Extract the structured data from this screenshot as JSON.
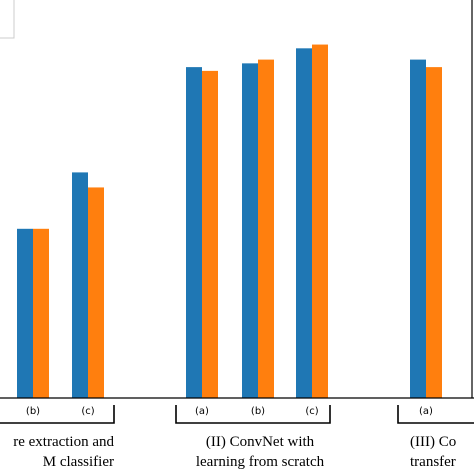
{
  "chart_data": {
    "type": "bar",
    "colors": [
      "#1f77b4",
      "#ff7f0e"
    ],
    "series": [
      {
        "values": [
          null,
          0.45,
          0.6,
          0.88,
          0.89,
          0.93,
          0.9,
          null
        ]
      },
      {
        "values": [
          null,
          0.45,
          0.56,
          0.87,
          0.9,
          0.94,
          0.88,
          null
        ]
      }
    ],
    "categories": [
      "",
      "(b)",
      "(c)",
      "(a)",
      "(b)",
      "(c)",
      "(a)",
      ""
    ],
    "groups": [
      {
        "label_lines": [
          "re extraction and",
          "M classifier"
        ]
      },
      {
        "label_lines": [
          "(II) ConvNet with",
          "learning from scratch"
        ]
      },
      {
        "label_lines": [
          "(III) Co",
          "transfer"
        ]
      }
    ],
    "ylim": [
      0,
      1
    ],
    "grid": false,
    "legend": "top-left (partially visible)"
  }
}
